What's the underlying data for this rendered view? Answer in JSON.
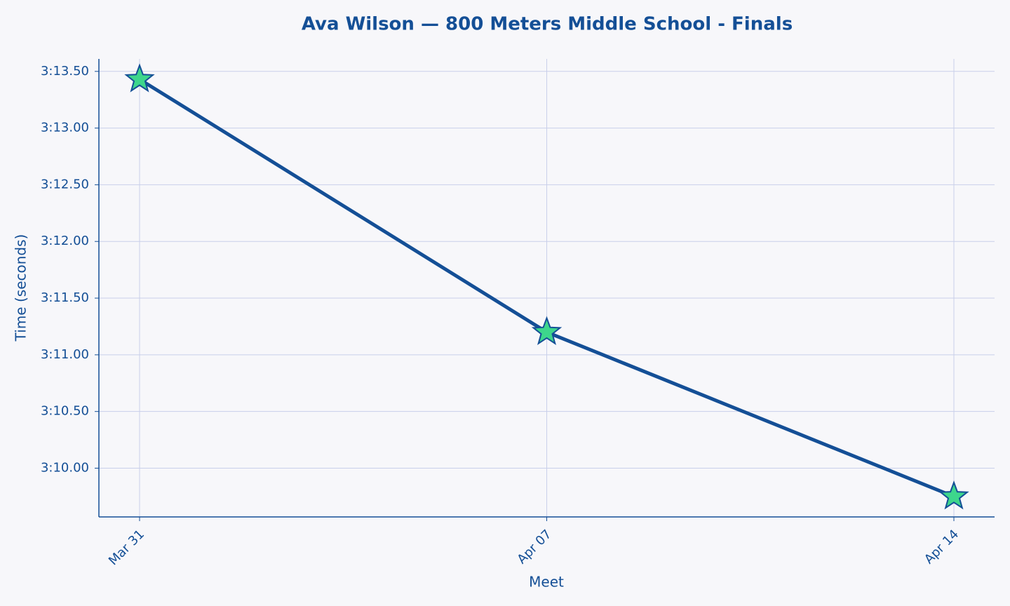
{
  "chart_data": {
    "type": "line",
    "title": "Ava Wilson — 800 Meters Middle School - Finals",
    "x_label": "Meet",
    "y_label": "Time (seconds)",
    "categories": [
      "Mar 31",
      "Apr 07",
      "Apr 14"
    ],
    "values": [
      193.43,
      191.2,
      189.75
    ],
    "color": "#144f96",
    "marker_color": "#3dd68c",
    "marker": "star",
    "ylim": [
      189.57,
      193.61
    ],
    "yticks": [
      {
        "value": 190.0,
        "label": "3:10.00"
      },
      {
        "value": 190.5,
        "label": "3:10.50"
      },
      {
        "value": 191.0,
        "label": "3:11.00"
      },
      {
        "value": 191.5,
        "label": "3:11.50"
      },
      {
        "value": 192.0,
        "label": "3:12.00"
      },
      {
        "value": 192.5,
        "label": "3:12.50"
      },
      {
        "value": 193.0,
        "label": "3:13.00"
      },
      {
        "value": 193.5,
        "label": "3:13.50"
      }
    ],
    "grid": true
  }
}
